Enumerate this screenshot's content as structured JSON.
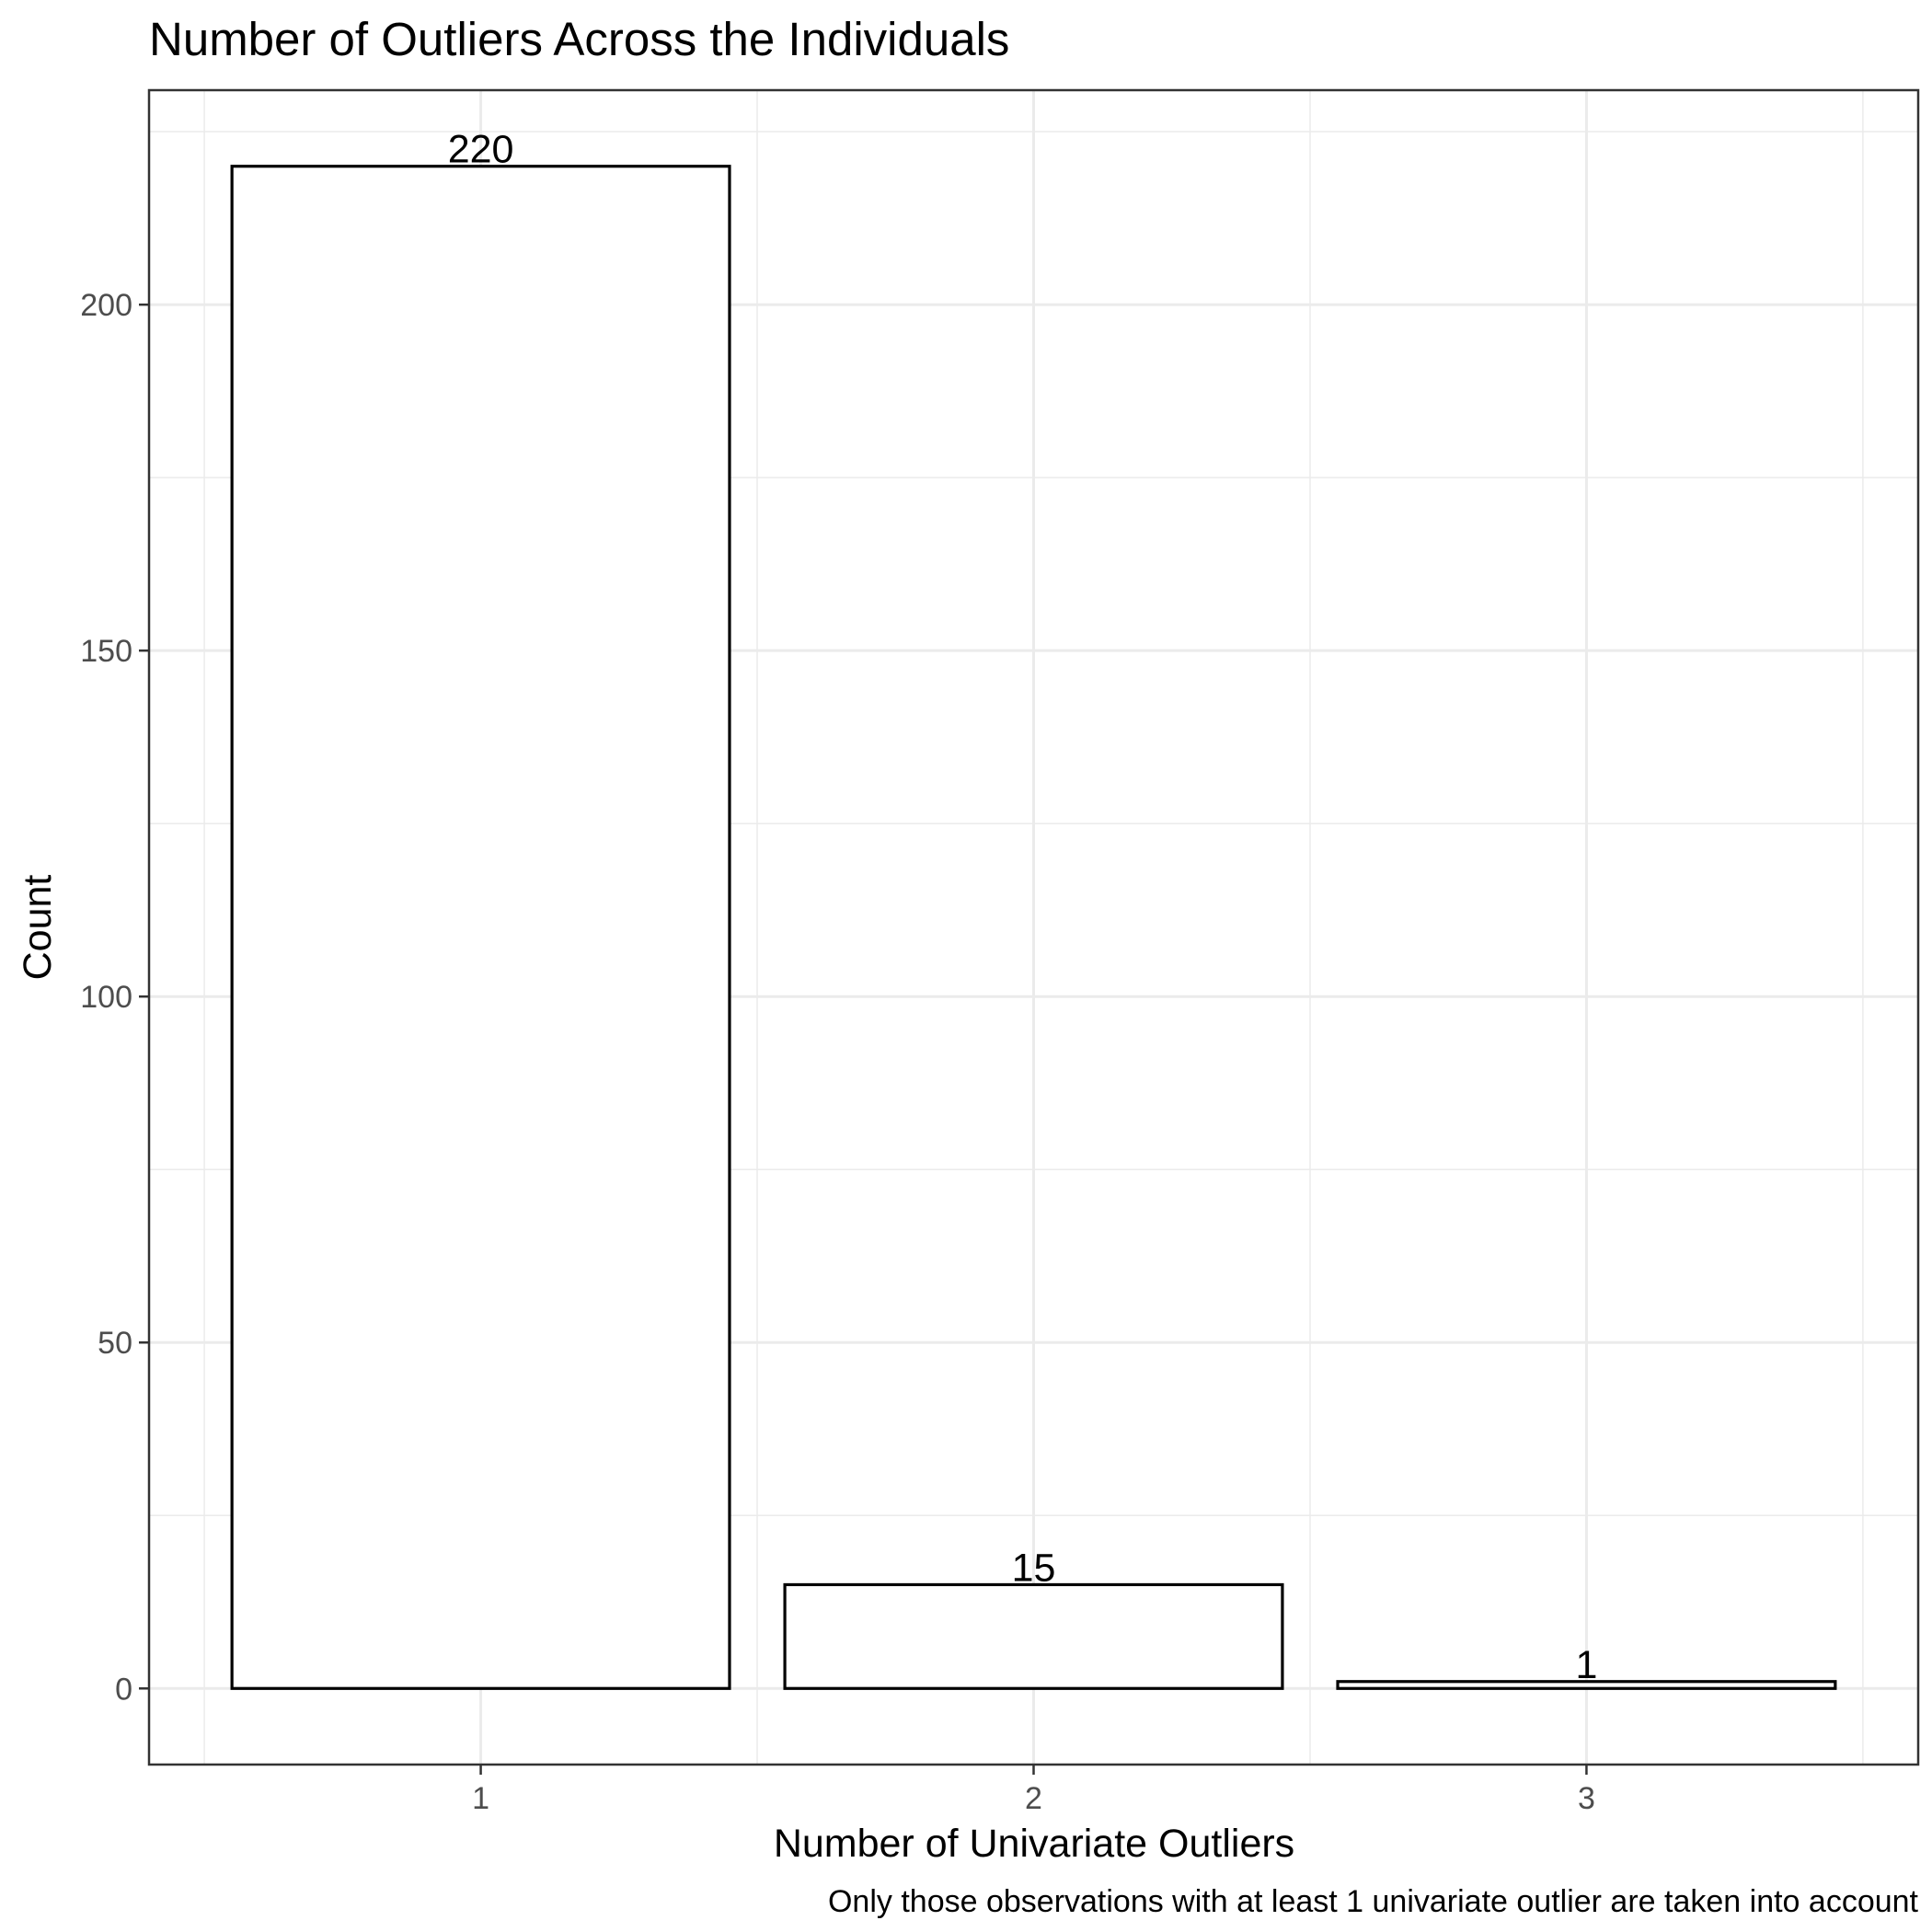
{
  "chart_data": {
    "type": "bar",
    "title": "Number of Outliers Across the Individuals",
    "xlabel": "Number of Univariate Outliers",
    "ylabel": "Count",
    "caption": "Only those observations with at least 1 univariate outlier are taken into account",
    "categories": [
      "1",
      "2",
      "3"
    ],
    "values": [
      220,
      15,
      1
    ],
    "data_labels": [
      "220",
      "15",
      "1"
    ],
    "yticks": [
      0,
      50,
      100,
      150,
      200
    ],
    "ytick_labels": [
      "0",
      "50",
      "100",
      "150",
      "200"
    ],
    "ylim": [
      -11,
      231
    ],
    "grid": true,
    "legend": "none",
    "colors": {
      "bar_fill": "#ffffff",
      "bar_stroke": "#000000",
      "grid": "#ebebeb"
    }
  }
}
